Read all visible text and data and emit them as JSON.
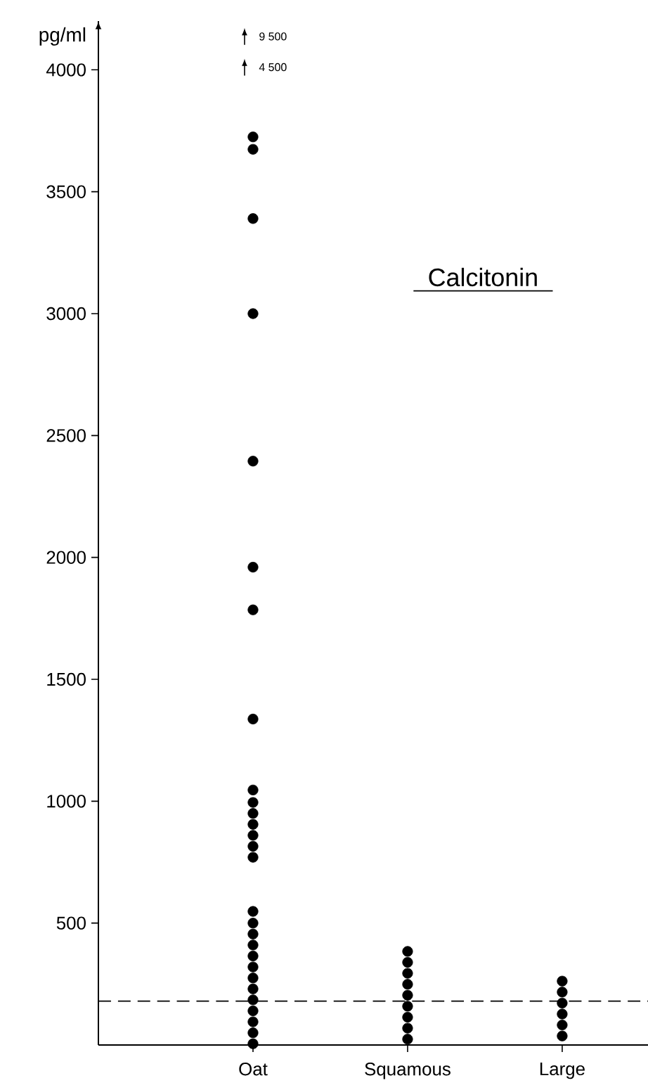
{
  "chart_data": {
    "type": "scatter",
    "title": "Calcitonin",
    "ylabel": "pg/ml",
    "categories": [
      "Oat",
      "Squamous",
      "Large"
    ],
    "series": [
      {
        "color": "#000000",
        "x": [
          "Oat",
          "Oat",
          "Oat",
          "Oat",
          "Oat",
          "Oat",
          "Oat",
          "Oat",
          "Oat",
          "Oat",
          "Oat",
          "Oat",
          "Oat",
          "Oat",
          "Oat",
          "Oat",
          "Oat",
          "Oat",
          "Oat",
          "Oat",
          "Oat",
          "Oat",
          "Oat",
          "Oat",
          "Oat",
          "Oat",
          "Oat",
          "Oat"
        ],
        "values": [
          3725,
          3674,
          3390,
          3000,
          2395,
          1960,
          1785,
          1337,
          1046,
          995,
          950,
          905,
          860,
          815,
          770,
          548,
          500,
          455,
          410,
          365,
          320,
          275,
          230,
          185,
          140,
          95,
          50,
          5
        ]
      },
      {
        "color": "#000000",
        "x": [
          "Squamous",
          "Squamous",
          "Squamous",
          "Squamous",
          "Squamous",
          "Squamous",
          "Squamous",
          "Squamous",
          "Squamous"
        ],
        "values": [
          384,
          339,
          294,
          249,
          204,
          159,
          114,
          69,
          24
        ]
      },
      {
        "color": "#000000",
        "x": [
          "Large",
          "Large",
          "Large",
          "Large",
          "Large",
          "Large"
        ],
        "values": [
          262,
          217,
          172,
          127,
          82,
          37
        ]
      }
    ],
    "ylim": [
      0,
      4200
    ],
    "yticks": [
      500,
      1000,
      1500,
      2000,
      2500,
      3000,
      3500,
      4000
    ],
    "marker": "circle",
    "ref_lines": [
      {
        "axis": "y",
        "value": 180,
        "line_style": "dashed",
        "color": "#000000"
      }
    ],
    "annotations": [
      "9 500",
      "4 500"
    ]
  }
}
